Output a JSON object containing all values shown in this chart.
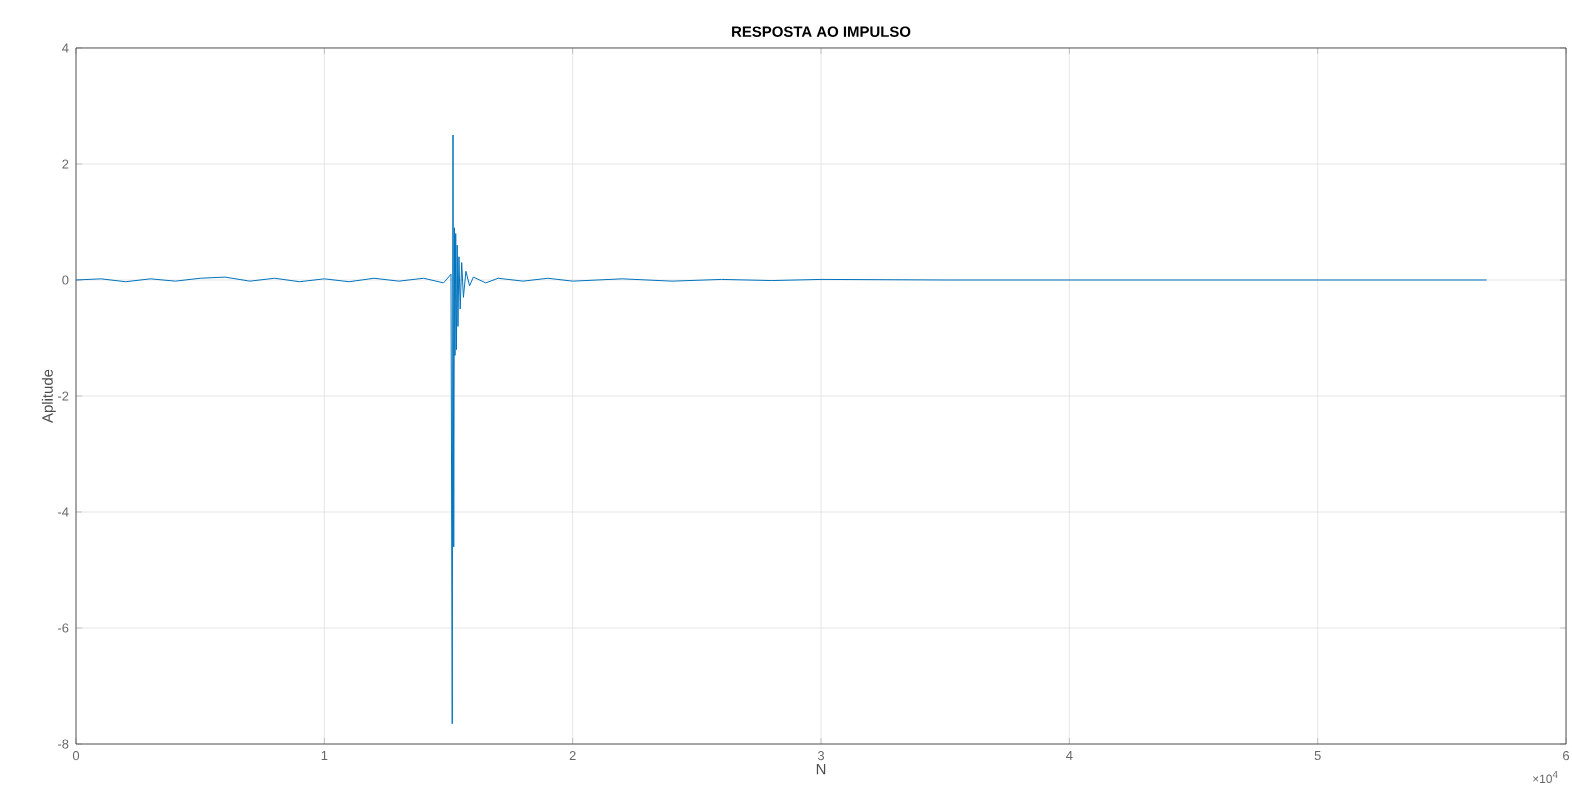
{
  "chart_data": {
    "type": "line",
    "title": "RESPOSTA AO IMPULSO",
    "xlabel": "N",
    "ylabel": "Aplitude",
    "annotations": [
      "×10$^{4}$"
    ],
    "x": [
      0,
      0.1,
      0.2,
      0.3,
      0.4,
      0.5,
      0.6,
      0.7,
      0.8,
      0.9,
      1.0,
      1.1,
      1.2,
      1.3,
      1.4,
      1.48,
      1.51,
      1.515,
      1.518,
      1.521,
      1.524,
      1.526,
      1.529,
      1.532,
      1.535,
      1.538,
      1.542,
      1.547,
      1.553,
      1.56,
      1.57,
      1.585,
      1.6,
      1.65,
      1.7,
      1.8,
      1.9,
      2.0,
      2.2,
      2.4,
      2.6,
      2.8,
      3.0,
      3.5,
      4.0,
      4.5,
      5.0,
      5.68
    ],
    "series": [
      {
        "color": "#0072bd",
        "values": [
          0,
          0.02,
          -0.03,
          0.02,
          -0.02,
          0.03,
          0.05,
          -0.02,
          0.03,
          -0.03,
          0.02,
          -0.03,
          0.03,
          -0.02,
          0.03,
          -0.05,
          0.1,
          -7.65,
          2.5,
          -4.6,
          0.9,
          -1.3,
          0.8,
          -1.2,
          0.6,
          -0.8,
          0.4,
          -0.5,
          0.3,
          -0.3,
          0.15,
          -0.1,
          0.05,
          -0.05,
          0.03,
          -0.02,
          0.03,
          -0.02,
          0.02,
          -0.02,
          0.01,
          -0.01,
          0.01,
          0,
          0,
          0,
          0,
          0
        ]
      }
    ],
    "xlim": [
      0,
      6
    ],
    "xticks": [
      0,
      1,
      2,
      3,
      4,
      5,
      6
    ],
    "ylim": [
      -8,
      4
    ],
    "yticks": [
      -8,
      -6,
      -4,
      -2,
      0,
      2,
      4
    ],
    "grid": true,
    "marker": "none",
    "line_style": "solid"
  }
}
